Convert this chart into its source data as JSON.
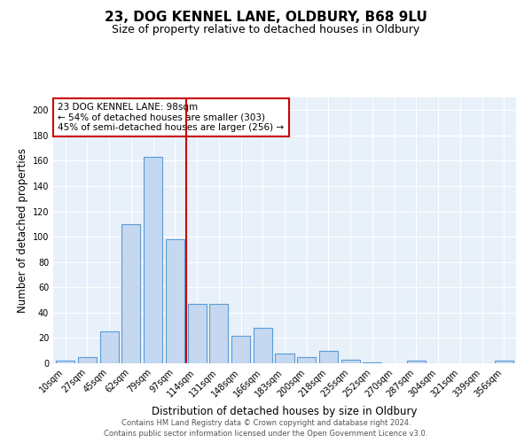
{
  "title_line1": "23, DOG KENNEL LANE, OLDBURY, B68 9LU",
  "title_line2": "Size of property relative to detached houses in Oldbury",
  "xlabel": "Distribution of detached houses by size in Oldbury",
  "ylabel": "Number of detached properties",
  "bar_labels": [
    "10sqm",
    "27sqm",
    "45sqm",
    "62sqm",
    "79sqm",
    "97sqm",
    "114sqm",
    "131sqm",
    "148sqm",
    "166sqm",
    "183sqm",
    "200sqm",
    "218sqm",
    "235sqm",
    "252sqm",
    "270sqm",
    "287sqm",
    "304sqm",
    "321sqm",
    "339sqm",
    "356sqm"
  ],
  "bar_values": [
    2,
    5,
    25,
    110,
    163,
    98,
    47,
    47,
    22,
    28,
    8,
    5,
    10,
    3,
    1,
    0,
    2,
    0,
    0,
    0,
    2
  ],
  "bar_color": "#c5d8f0",
  "bar_edge_color": "#5b9bd5",
  "vline_x": 5.5,
  "vline_color": "#cc0000",
  "annotation_text": "23 DOG KENNEL LANE: 98sqm\n← 54% of detached houses are smaller (303)\n45% of semi-detached houses are larger (256) →",
  "annotation_box_color": "white",
  "annotation_box_edge_color": "#cc0000",
  "ylim": [
    0,
    210
  ],
  "yticks": [
    0,
    20,
    40,
    60,
    80,
    100,
    120,
    140,
    160,
    180,
    200
  ],
  "background_color": "#e8f0fa",
  "footer_line1": "Contains HM Land Registry data © Crown copyright and database right 2024.",
  "footer_line2": "Contains public sector information licensed under the Open Government Licence v3.0.",
  "title_fontsize": 11,
  "subtitle_fontsize": 9,
  "axis_label_fontsize": 8.5,
  "tick_fontsize": 7,
  "annotation_fontsize": 7.5,
  "footer_fontsize": 6
}
